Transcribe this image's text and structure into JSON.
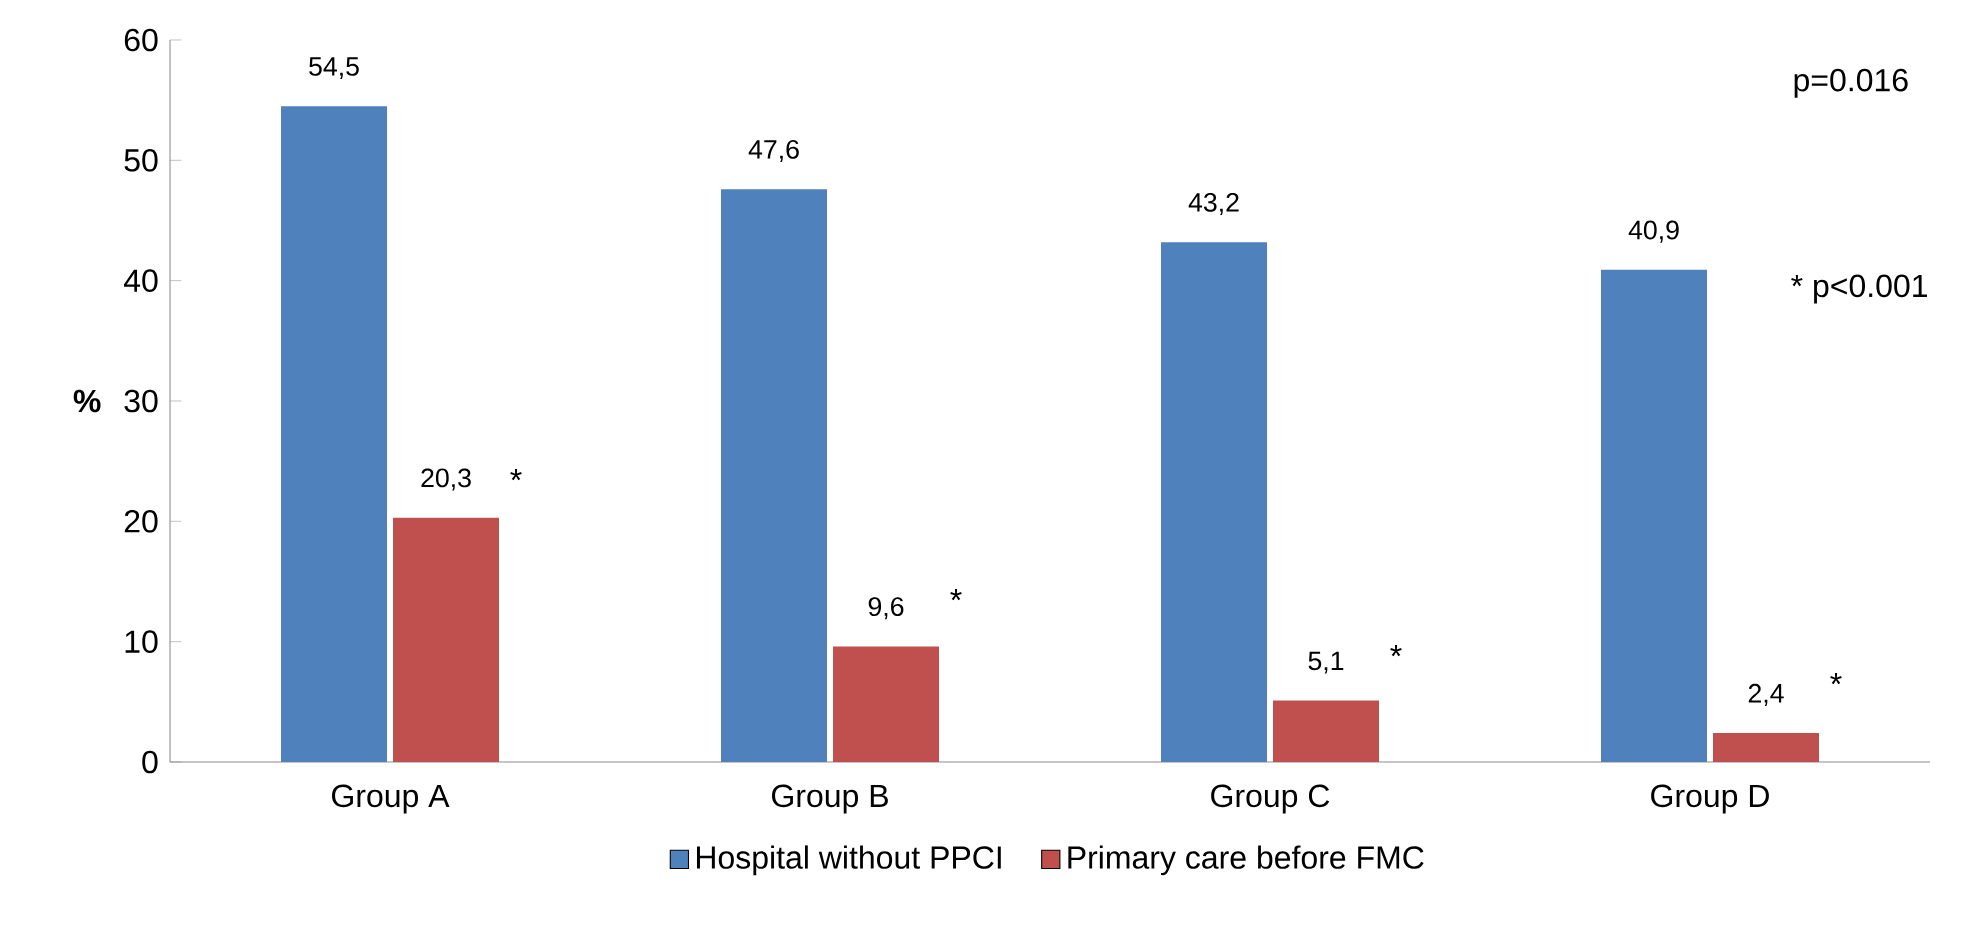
{
  "chart_data": {
    "type": "bar",
    "ylabel": "%",
    "categories": [
      "Group A",
      "Group B",
      "Group C",
      "Group D"
    ],
    "series": [
      {
        "name": "Hospital without PPCI",
        "color": "#4f81bd",
        "values": [
          54.5,
          47.6,
          43.2,
          40.9
        ],
        "value_labels": [
          "54,5",
          "47,6",
          "43,2",
          "40,9"
        ]
      },
      {
        "name": "Primary care before FMC",
        "color": "#c0504d",
        "values": [
          20.3,
          9.6,
          5.1,
          2.4
        ],
        "value_labels": [
          "20,3",
          "9,6",
          "5,1",
          "2,4"
        ]
      }
    ],
    "ylim": [
      0,
      60
    ],
    "yticks": [
      0,
      10,
      20,
      30,
      40,
      50,
      60
    ],
    "grid": false,
    "legend": "bottom",
    "annotations": [
      "p=0.016",
      "* p<0.001",
      "*",
      "*",
      "*",
      "*"
    ]
  }
}
